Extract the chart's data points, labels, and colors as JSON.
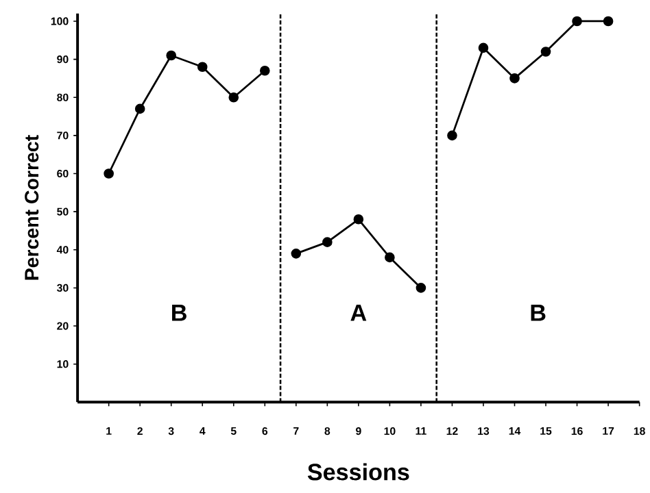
{
  "chart_data": {
    "type": "line",
    "xlabel": "Sessions",
    "ylabel": "Percent Correct",
    "xlim": [
      0,
      18
    ],
    "xticks": [
      1,
      2,
      3,
      4,
      5,
      6,
      7,
      8,
      9,
      10,
      11,
      12,
      13,
      14,
      15,
      16,
      17,
      18
    ],
    "ylim": [
      0,
      102
    ],
    "yticks": [
      10,
      20,
      30,
      40,
      50,
      60,
      70,
      80,
      90,
      100
    ],
    "series": [
      {
        "color": "#000000",
        "x": [
          1,
          2,
          3,
          4,
          5,
          6
        ],
        "values": [
          60,
          77,
          91,
          88,
          80,
          87
        ]
      },
      {
        "color": "#000000",
        "x": [
          7,
          8,
          9,
          10,
          11
        ],
        "values": [
          39,
          42,
          48,
          38,
          30
        ]
      },
      {
        "color": "#000000",
        "x": [
          12,
          13,
          14,
          15,
          16,
          17
        ],
        "values": [
          70,
          93,
          85,
          92,
          100,
          100
        ]
      }
    ],
    "marker": "circle",
    "line_style": "solid",
    "ref_lines": [
      {
        "axis": "x",
        "value": 6.5,
        "color": "#000000",
        "line_style": "dashed"
      },
      {
        "axis": "x",
        "value": 11.5,
        "color": "#000000",
        "line_style": "dashed"
      }
    ],
    "annotations": [
      "B",
      "A",
      "B"
    ]
  }
}
